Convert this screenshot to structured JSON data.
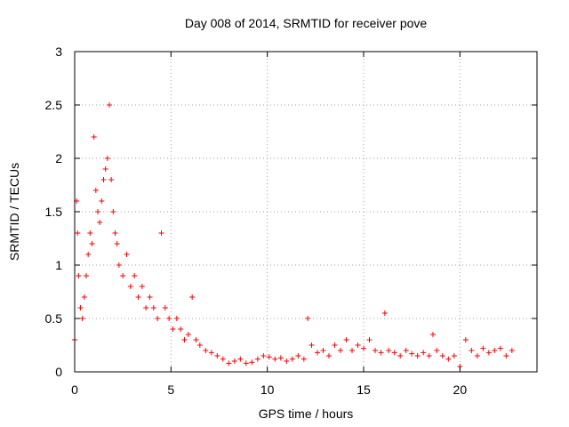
{
  "chart_data": {
    "type": "scatter",
    "title": "Day 008 of 2014, SRMTID for receiver pove",
    "xlabel": "GPS time / hours",
    "ylabel": "SRMTID / TECUs",
    "xlim": [
      0,
      24
    ],
    "ylim": [
      0,
      3
    ],
    "x_ticks": [
      0,
      5,
      10,
      15,
      20
    ],
    "y_ticks": [
      0,
      0.5,
      1,
      1.5,
      2,
      2.5,
      3
    ],
    "y_tick_labels": [
      "0",
      "0.5",
      "1",
      "1.5",
      "2",
      "2.5",
      "3"
    ],
    "grid": true,
    "marker": "+",
    "color": "#ff0000",
    "series": [
      {
        "name": "SRMTID",
        "x": [
          0.0,
          0.1,
          0.15,
          0.2,
          0.3,
          0.4,
          0.5,
          0.6,
          0.7,
          0.8,
          0.9,
          1.0,
          1.1,
          1.2,
          1.3,
          1.4,
          1.5,
          1.6,
          1.7,
          1.8,
          1.9,
          2.0,
          2.1,
          2.2,
          2.3,
          2.5,
          2.7,
          2.9,
          3.1,
          3.3,
          3.5,
          3.7,
          3.9,
          4.1,
          4.3,
          4.5,
          4.7,
          4.9,
          5.1,
          5.3,
          5.5,
          5.7,
          5.9,
          6.1,
          6.3,
          6.5,
          6.8,
          7.1,
          7.4,
          7.7,
          8.0,
          8.3,
          8.6,
          8.9,
          9.2,
          9.5,
          9.8,
          10.1,
          10.4,
          10.7,
          11.0,
          11.3,
          11.6,
          11.9,
          12.1,
          12.3,
          12.6,
          12.9,
          13.2,
          13.5,
          13.8,
          14.1,
          14.4,
          14.7,
          15.0,
          15.3,
          15.6,
          15.9,
          16.1,
          16.3,
          16.6,
          16.9,
          17.2,
          17.5,
          17.8,
          18.1,
          18.4,
          18.6,
          18.8,
          19.1,
          19.4,
          19.7,
          20.0,
          20.3,
          20.6,
          20.9,
          21.2,
          21.5,
          21.8,
          22.1,
          22.4,
          22.7
        ],
        "y": [
          0.3,
          1.6,
          1.3,
          0.9,
          0.6,
          0.5,
          0.7,
          0.9,
          1.1,
          1.3,
          1.2,
          2.2,
          1.7,
          1.5,
          1.4,
          1.6,
          1.8,
          1.9,
          2.0,
          2.5,
          1.8,
          1.5,
          1.3,
          1.2,
          1.0,
          0.9,
          1.1,
          0.8,
          0.9,
          0.7,
          0.8,
          0.6,
          0.7,
          0.6,
          0.5,
          1.3,
          0.6,
          0.5,
          0.4,
          0.5,
          0.4,
          0.3,
          0.35,
          0.7,
          0.3,
          0.25,
          0.2,
          0.18,
          0.15,
          0.12,
          0.08,
          0.1,
          0.12,
          0.08,
          0.09,
          0.12,
          0.15,
          0.14,
          0.12,
          0.13,
          0.1,
          0.12,
          0.15,
          0.12,
          0.5,
          0.25,
          0.18,
          0.2,
          0.15,
          0.25,
          0.2,
          0.3,
          0.2,
          0.25,
          0.22,
          0.3,
          0.2,
          0.18,
          0.55,
          0.2,
          0.18,
          0.15,
          0.2,
          0.17,
          0.15,
          0.18,
          0.15,
          0.35,
          0.2,
          0.15,
          0.12,
          0.15,
          0.05,
          0.3,
          0.2,
          0.15,
          0.22,
          0.18,
          0.2,
          0.22,
          0.15,
          0.2
        ]
      }
    ]
  }
}
